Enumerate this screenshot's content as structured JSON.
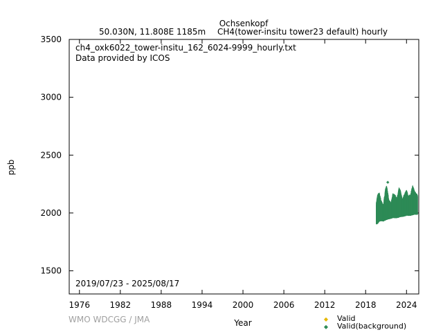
{
  "chart_data": {
    "type": "scatter",
    "title": "Ochsenkopf",
    "subtitle_location": "50.030N, 11.808E 1185m",
    "subtitle_series": "CH4(tower-insitu tower23 default) hourly",
    "filename": "ch4_oxk6022_tower-insitu_162_6024-9999_hourly.txt",
    "provider": "Data provided by ICOS",
    "date_range": "2019/07/23 - 2025/08/17",
    "xlabel": "Year",
    "ylabel": "ppb",
    "xlim": [
      1974.5,
      2025.8
    ],
    "ylim": [
      1300,
      3500
    ],
    "x_ticks": [
      "1976",
      "1982",
      "1988",
      "1994",
      "2000",
      "2006",
      "2012",
      "2018",
      "2024"
    ],
    "y_ticks": [
      "1500",
      "2000",
      "2500",
      "3000",
      "3500"
    ],
    "grid": false,
    "legend_position": "bottom-right, below plot",
    "series": [
      {
        "name": "Valid",
        "color": "#e6b800",
        "values": []
      },
      {
        "name": "Valid(background)",
        "color": "#2e8b57",
        "envelope": [
          {
            "x": 2019.56,
            "min": 1900,
            "max": 2080
          },
          {
            "x": 2019.75,
            "min": 1905,
            "max": 2150
          },
          {
            "x": 2020.0,
            "min": 1925,
            "max": 2170
          },
          {
            "x": 2020.3,
            "min": 1930,
            "max": 2100
          },
          {
            "x": 2020.6,
            "min": 1925,
            "max": 2060
          },
          {
            "x": 2020.9,
            "min": 1935,
            "max": 2200
          },
          {
            "x": 2021.1,
            "min": 1940,
            "max": 2230
          },
          {
            "x": 2021.4,
            "min": 1945,
            "max": 2110
          },
          {
            "x": 2021.7,
            "min": 1950,
            "max": 2080
          },
          {
            "x": 2022.0,
            "min": 1955,
            "max": 2160
          },
          {
            "x": 2022.3,
            "min": 1955,
            "max": 2150
          },
          {
            "x": 2022.6,
            "min": 1955,
            "max": 2120
          },
          {
            "x": 2022.9,
            "min": 1960,
            "max": 2210
          },
          {
            "x": 2023.1,
            "min": 1965,
            "max": 2190
          },
          {
            "x": 2023.4,
            "min": 1965,
            "max": 2110
          },
          {
            "x": 2023.7,
            "min": 1970,
            "max": 2160
          },
          {
            "x": 2024.0,
            "min": 1975,
            "max": 2190
          },
          {
            "x": 2024.3,
            "min": 1975,
            "max": 2140
          },
          {
            "x": 2024.6,
            "min": 1975,
            "max": 2160
          },
          {
            "x": 2024.9,
            "min": 1980,
            "max": 2230
          },
          {
            "x": 2025.2,
            "min": 1985,
            "max": 2180
          },
          {
            "x": 2025.62,
            "min": 1985,
            "max": 2150
          }
        ],
        "outliers": [
          {
            "x": 2021.25,
            "y": 2265
          }
        ]
      }
    ]
  },
  "credit": "WMO WDCGG / JMA"
}
